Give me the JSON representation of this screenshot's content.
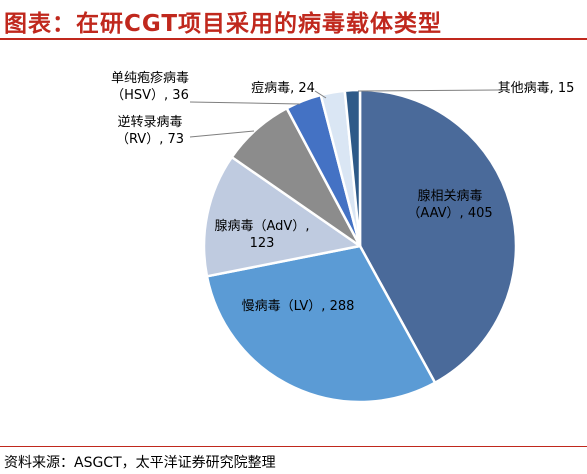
{
  "header": {
    "title": "图表：在研CGT项目采用的病毒载体类型"
  },
  "footer": {
    "source": "资料来源：ASGCT，太平洋证券研究院整理"
  },
  "colors": {
    "title": "#c0281d",
    "leader": "#7f7f7f"
  },
  "chart_data": {
    "type": "pie",
    "title": "",
    "slices": [
      {
        "name": "腺相关病毒（AAV）",
        "label_lines": [
          "腺相关病毒",
          "（AAV）, 405"
        ],
        "value": 405,
        "color": "#4a6a9a"
      },
      {
        "name": "慢病毒（LV）",
        "label_lines": [
          "慢病毒（LV）, 288"
        ],
        "value": 288,
        "color": "#5b9bd5"
      },
      {
        "name": "腺病毒（AdV）",
        "label_lines": [
          "腺病毒（AdV）,",
          "123"
        ],
        "value": 123,
        "color": "#bfcbe0"
      },
      {
        "name": "逆转录病毒（RV）",
        "label_lines": [
          "逆转录病毒",
          "（RV）, 73"
        ],
        "value": 73,
        "color": "#8c8c8c"
      },
      {
        "name": "单纯疱疹病毒（HSV）",
        "label_lines": [
          "单纯疱疹病毒",
          "（HSV）, 36"
        ],
        "value": 36,
        "color": "#4472c4"
      },
      {
        "name": "痘病毒",
        "label_lines": [
          "痘病毒, 24"
        ],
        "value": 24,
        "color": "#dae6f4"
      },
      {
        "name": "其他病毒",
        "label_lines": [
          "其他病毒, 15"
        ],
        "value": 15,
        "color": "#2e5a88"
      }
    ]
  }
}
